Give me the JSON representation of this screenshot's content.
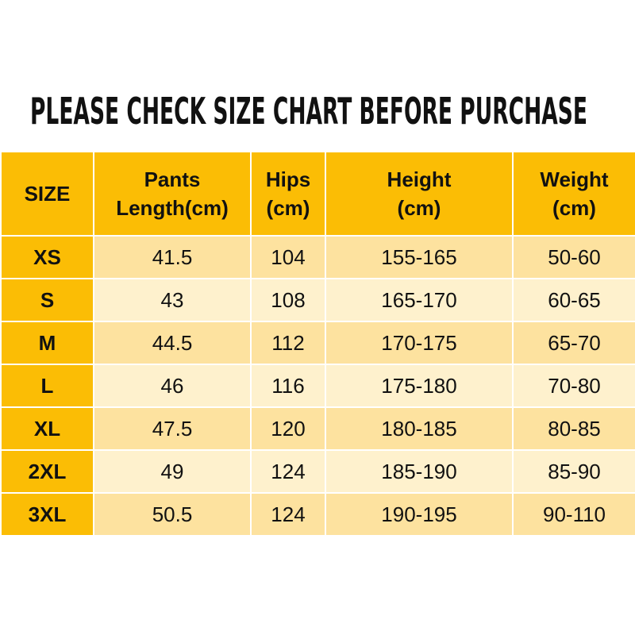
{
  "title": "PLEASE CHECK SIZE CHART BEFORE PURCHASE",
  "table": {
    "header": [
      "SIZE",
      "Pants\nLength(cm)",
      "Hips\n(cm)",
      "Height\n(cm)",
      "Weight\n(cm)"
    ],
    "rows": [
      [
        "XS",
        41.5,
        104,
        "155-165",
        "50-60"
      ],
      [
        "S",
        43,
        108,
        "165-170",
        "60-65"
      ],
      [
        "M",
        44.5,
        112,
        "170-175",
        "65-70"
      ],
      [
        "L",
        46,
        116,
        "175-180",
        "70-80"
      ],
      [
        "XL",
        47.5,
        120,
        "180-185",
        "80-85"
      ],
      [
        "2XL",
        49,
        124,
        "185-190",
        "85-90"
      ],
      [
        "3XL",
        50.5,
        124,
        "190-195",
        "90-110"
      ]
    ]
  }
}
